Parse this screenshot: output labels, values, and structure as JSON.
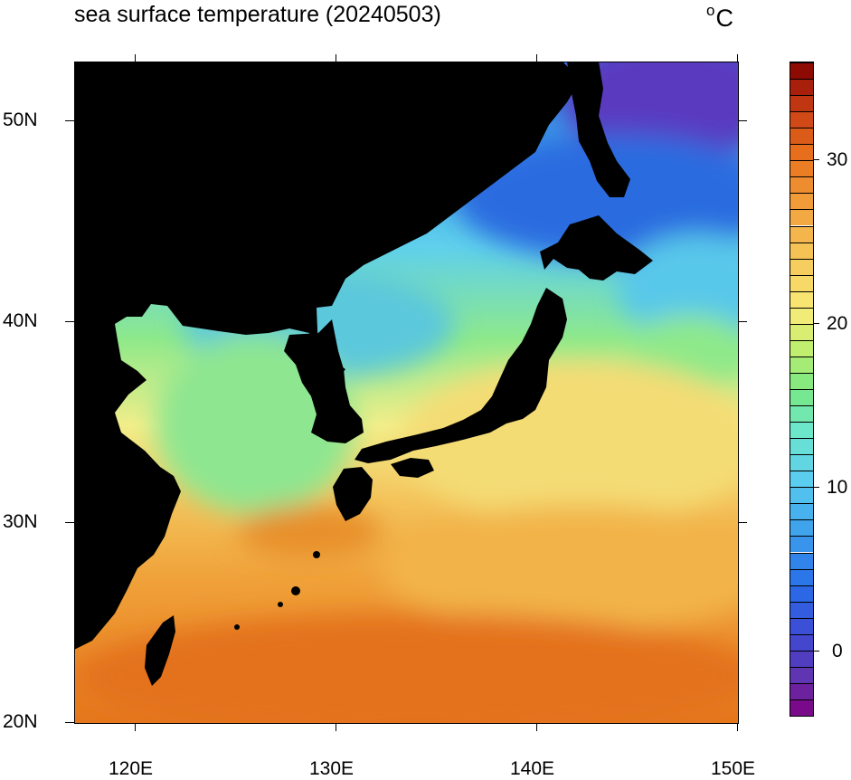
{
  "title": "sea surface temperature (20240503)",
  "unit": {
    "degree": "o",
    "letter": "C"
  },
  "axes": {
    "x_labels": [
      "120E",
      "130E",
      "140E",
      "150E"
    ],
    "y_labels": [
      "50N",
      "40N",
      "30N",
      "20N"
    ],
    "lon_range": [
      117,
      150
    ],
    "lat_range": [
      20,
      53
    ]
  },
  "colorbar": {
    "labels": [
      "30",
      "20",
      "10",
      "0"
    ],
    "range": [
      -4,
      36
    ],
    "step": 1
  },
  "colors": {
    "land": "#000000",
    "warm": "#e97a16",
    "temperate": "#f7e070",
    "cool": "#7be870",
    "cold": "#2f8bec",
    "polar": "#6534b5"
  }
}
